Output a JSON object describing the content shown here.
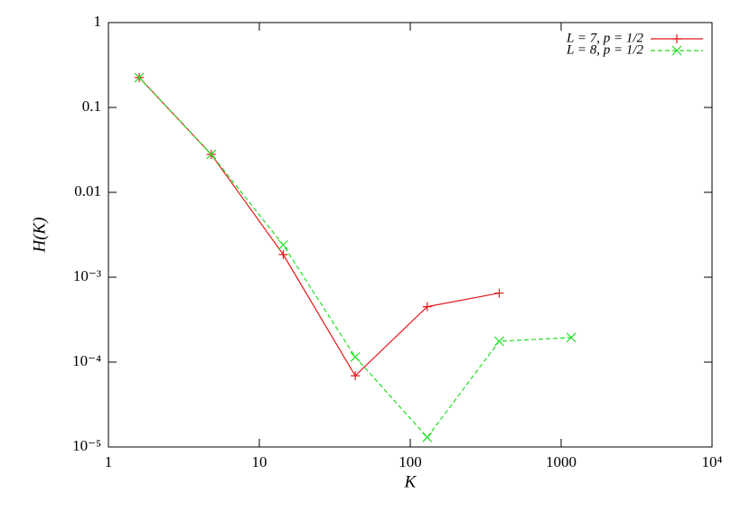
{
  "chart_data": {
    "type": "line",
    "xlabel": "K",
    "ylabel": "H(K)",
    "xscale": "log",
    "yscale": "log",
    "xlim": [
      1,
      10000
    ],
    "ylim": [
      1e-05,
      1
    ],
    "xticks": [
      1,
      10,
      100,
      1000,
      {
        "value": 10000,
        "label": "10⁴"
      }
    ],
    "yticks": [
      1,
      0.1,
      0.01,
      {
        "value": 0.001,
        "label": "10⁻³"
      },
      {
        "value": 0.0001,
        "label": "10⁻⁴"
      },
      {
        "value": 1e-05,
        "label": "10⁻⁵"
      }
    ],
    "legend": "upper right",
    "series": [
      {
        "name": "L = 7, p = 1/2",
        "color": "#e41a1c",
        "dash": false,
        "marker": "+",
        "x": [
          1.6,
          4.8,
          14.4,
          43.2,
          129.6,
          388.8
        ],
        "values": [
          0.225,
          0.028,
          0.00185,
          6.9e-05,
          0.00045,
          0.00065
        ]
      },
      {
        "name": "L = 8, p = 1/2",
        "color": "#22dd22",
        "dash": true,
        "marker": "x",
        "x": [
          1.6,
          4.8,
          14.4,
          43.2,
          129.6,
          388.8,
          1166.4
        ],
        "values": [
          0.225,
          0.028,
          0.0024,
          0.000115,
          1.3e-05,
          0.000176,
          0.000195
        ]
      }
    ]
  }
}
